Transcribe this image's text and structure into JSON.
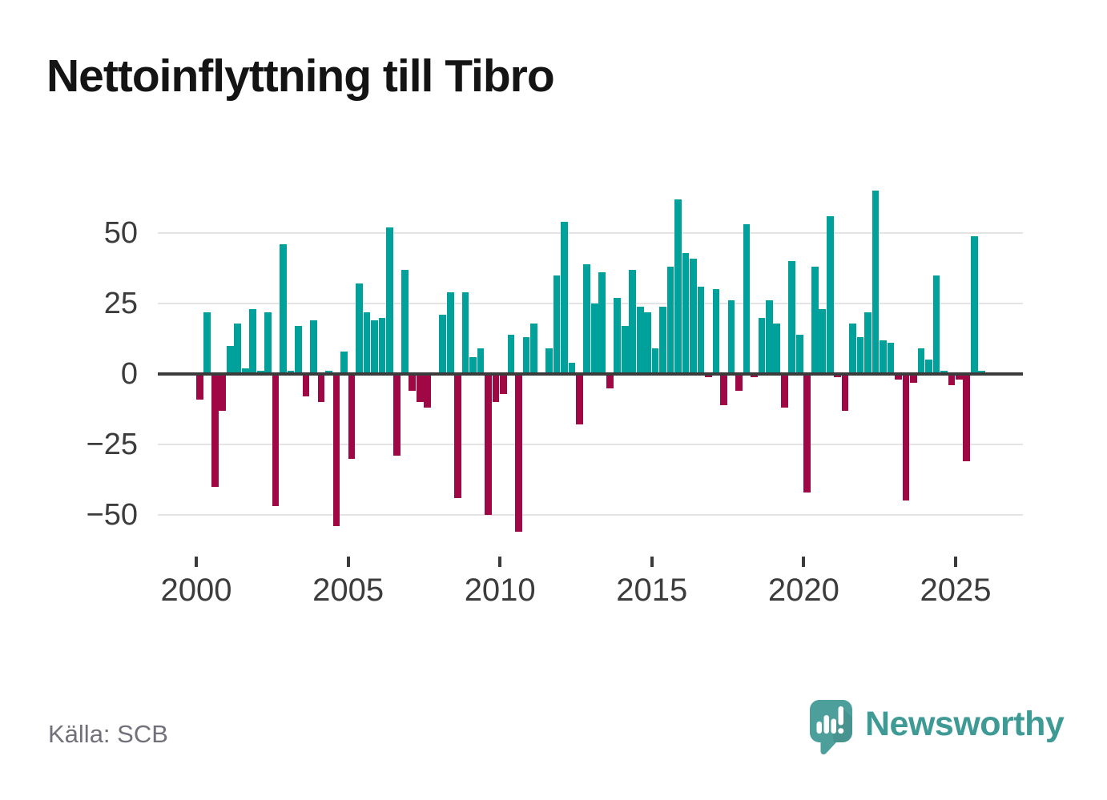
{
  "title": "Nettoinflyttning till Tibro",
  "source": "Källa: SCB",
  "brand": {
    "name": "Newsworthy",
    "icon_color": "#4c9f9a",
    "text_color": "#3d9a95"
  },
  "colors": {
    "positive": "#00a19b",
    "negative": "#a00845",
    "zero_axis": "#3b3b3b",
    "grid": "#e4e4e4",
    "axis_label": "#3c3c3c",
    "title_text": "#141414",
    "source_text": "#71717b",
    "background": "#ffffff"
  },
  "chart_data": {
    "type": "bar",
    "title": "Nettoinflyttning till Tibro",
    "xlabel": "",
    "ylabel": "",
    "source": "Källa: SCB",
    "frequency": "quarterly",
    "start": "2000-Q1",
    "end": "2025-Q4",
    "grid": true,
    "legend": "none",
    "ylim": [
      -60,
      70
    ],
    "y_ticks": [
      {
        "value": 50,
        "label": "50"
      },
      {
        "value": 25,
        "label": "25"
      },
      {
        "value": 0,
        "label": "0"
      },
      {
        "value": -25,
        "label": "−25"
      },
      {
        "value": -50,
        "label": "−50"
      }
    ],
    "x_ticks": [
      {
        "year": 2000,
        "label": "2000"
      },
      {
        "year": 2005,
        "label": "2005"
      },
      {
        "year": 2010,
        "label": "2010"
      },
      {
        "year": 2015,
        "label": "2015"
      },
      {
        "year": 2020,
        "label": "2020"
      },
      {
        "year": 2025,
        "label": "2025"
      }
    ],
    "values": [
      -9,
      22,
      -40,
      -13,
      10,
      18,
      2,
      23,
      1,
      22,
      -47,
      46,
      1,
      17,
      -8,
      19,
      -10,
      1,
      -54,
      8,
      -30,
      32,
      22,
      19,
      20,
      52,
      -29,
      37,
      -6,
      -10,
      -12,
      0,
      21,
      29,
      -44,
      29,
      6,
      9,
      -50,
      -10,
      -7,
      14,
      -56,
      13,
      18,
      0,
      9,
      35,
      54,
      4,
      -18,
      39,
      25,
      36,
      -5,
      27,
      17,
      37,
      24,
      22,
      9,
      24,
      38,
      62,
      43,
      41,
      31,
      -1,
      30,
      -11,
      26,
      -6,
      53,
      -1,
      20,
      26,
      18,
      -12,
      40,
      14,
      -42,
      38,
      23,
      56,
      -1,
      -13,
      18,
      13,
      22,
      65,
      12,
      11,
      -2,
      -45,
      -3,
      9,
      5,
      35,
      1,
      -4,
      -2,
      -31,
      49,
      1
    ]
  }
}
